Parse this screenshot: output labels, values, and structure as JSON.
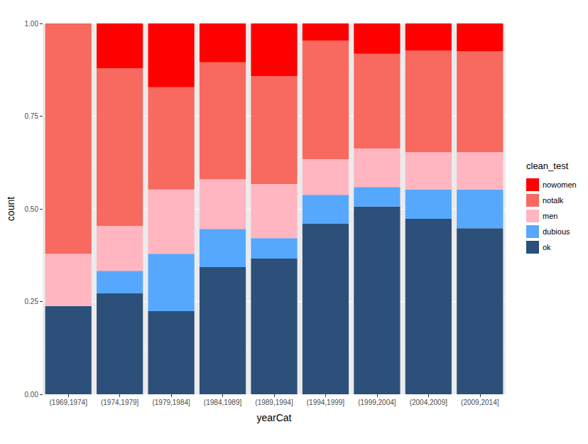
{
  "chart_data": {
    "type": "bar",
    "stacked": true,
    "x_label": "yearCat",
    "y_label": "count",
    "legend_title": "clean_test",
    "legend": "right",
    "grid": true,
    "categories": [
      "(1969,1974]",
      "(1974,1979]",
      "(1979,1984]",
      "(1984,1989]",
      "(1989,1994]",
      "(1994,1999]",
      "(1999,2004]",
      "(2004,2009]",
      "(2009,2014]"
    ],
    "ylim": [
      0,
      1
    ],
    "yticks": [
      {
        "value": 0,
        "label": "0.00"
      },
      {
        "value": 0.25,
        "label": "0.25"
      },
      {
        "value": 0.5,
        "label": "0.50"
      },
      {
        "value": 0.75,
        "label": "0.75"
      },
      {
        "value": 1,
        "label": "1.00"
      }
    ],
    "series": [
      {
        "name": "nowomen",
        "color": "#ff0000",
        "values": [
          0,
          0.121,
          0.172,
          0.105,
          0.142,
          0.046,
          0.082,
          0.073,
          0.075
        ]
      },
      {
        "name": "notalk",
        "color": "#f8695f",
        "values": [
          0.621,
          0.425,
          0.276,
          0.315,
          0.291,
          0.32,
          0.255,
          0.274,
          0.272
        ]
      },
      {
        "name": "men",
        "color": "#ffb6c1",
        "values": [
          0.141,
          0.121,
          0.173,
          0.134,
          0.146,
          0.096,
          0.104,
          0.101,
          0.101
        ]
      },
      {
        "name": "dubious",
        "color": "#56a8fe",
        "values": [
          0,
          0.061,
          0.155,
          0.103,
          0.055,
          0.078,
          0.053,
          0.079,
          0.104
        ]
      },
      {
        "name": "ok",
        "color": "#2c5079",
        "values": [
          0.238,
          0.272,
          0.224,
          0.343,
          0.366,
          0.46,
          0.506,
          0.473,
          0.448
        ]
      }
    ]
  }
}
